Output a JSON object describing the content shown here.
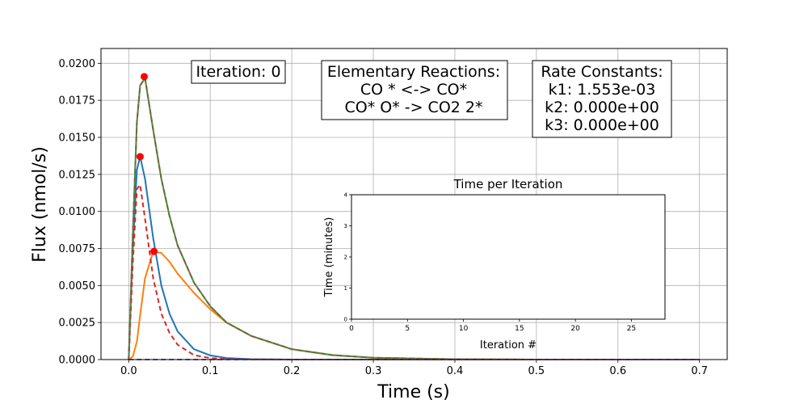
{
  "chart_data": [
    {
      "type": "line",
      "xlabel": "Time (s)",
      "ylabel": "Flux (nmol/s)",
      "xlim": [
        -0.034,
        0.734
      ],
      "ylim": [
        0.0,
        0.021
      ],
      "xticks": [
        0.0,
        0.1,
        0.2,
        0.3,
        0.4,
        0.5,
        0.6,
        0.7
      ],
      "xtick_labels": [
        "0.0",
        "0.1",
        "0.2",
        "0.3",
        "0.4",
        "0.5",
        "0.6",
        "0.7"
      ],
      "yticks": [
        0.0,
        0.0025,
        0.005,
        0.0075,
        0.01,
        0.0125,
        0.015,
        0.0175,
        0.02
      ],
      "ytick_labels": [
        "0.0000",
        "0.0025",
        "0.0050",
        "0.0075",
        "0.0100",
        "0.0125",
        "0.0150",
        "0.0175",
        "0.0200"
      ],
      "grid": true,
      "x": [
        0.0,
        0.005,
        0.01,
        0.014,
        0.02,
        0.03,
        0.04,
        0.05,
        0.06,
        0.08,
        0.1,
        0.12,
        0.15,
        0.2,
        0.25,
        0.3,
        0.4,
        0.5,
        0.6,
        0.7
      ],
      "series": [
        {
          "color": "#1f77b4",
          "dash": "solid",
          "values": [
            0.0,
            0.0075,
            0.0128,
            0.0137,
            0.0122,
            0.0082,
            0.005,
            0.0031,
            0.0019,
            0.0007,
            0.00028,
            0.0001,
            3e-05,
            3e-06,
            0.0,
            0.0,
            0.0,
            0.0,
            0.0,
            0.0
          ]
        },
        {
          "color": "#ff7f0e",
          "dash": "solid",
          "values": [
            0.0,
            0.0002,
            0.0012,
            0.003,
            0.0055,
            0.0073,
            0.0072,
            0.0066,
            0.0058,
            0.0045,
            0.0034,
            0.0025,
            0.0016,
            0.0007,
            0.0003,
            0.00012,
            2e-05,
            0.0,
            0.0,
            0.0
          ]
        },
        {
          "color": "#2ca02c",
          "dash": "solid",
          "values": [
            0.0,
            0.0085,
            0.016,
            0.0185,
            0.019,
            0.0155,
            0.0122,
            0.0097,
            0.0077,
            0.0052,
            0.0036,
            0.0025,
            0.0016,
            0.0007,
            0.0003,
            0.00012,
            2e-05,
            0.0,
            0.0,
            0.0
          ]
        },
        {
          "color": "#d62728",
          "dash": "dashed",
          "values": [
            0.0,
            0.0065,
            0.0115,
            0.0118,
            0.0095,
            0.0055,
            0.0031,
            0.0018,
            0.001,
            0.0003,
            0.0001,
            3e-05,
            1e-05,
            0.0,
            0.0,
            0.0,
            0.0,
            0.0,
            0.0,
            0.0
          ]
        },
        {
          "color": "#8c564b",
          "dash": "dashed",
          "values": [
            0.0,
            0.0085,
            0.016,
            0.0185,
            0.019,
            0.0155,
            0.0122,
            0.0097,
            0.0077,
            0.0052,
            0.0036,
            0.0025,
            0.0016,
            0.0007,
            0.0003,
            0.00012,
            2e-05,
            0.0,
            0.0,
            0.0
          ]
        },
        {
          "color": "#9467bd",
          "dash": "dashed",
          "values": [
            0.0,
            0.0,
            0.0,
            0.0,
            0.0,
            0.0,
            0.0,
            0.0,
            0.0,
            0.0,
            0.0,
            0.0,
            0.0,
            0.0,
            0.0,
            0.0,
            0.0,
            0.0,
            0.0,
            0.0
          ]
        }
      ],
      "peak_markers": [
        {
          "x": 0.014,
          "y": 0.0137,
          "color": "#ff0000"
        },
        {
          "x": 0.019,
          "y": 0.0191,
          "color": "#ff0000"
        },
        {
          "x": 0.031,
          "y": 0.0073,
          "color": "#ff0000"
        }
      ],
      "annotations": {
        "iteration": "Iteration: 0",
        "reactions": [
          "Elementary Reactions:",
          "CO  * <-> CO*",
          "CO*  O* -> CO2  2*"
        ],
        "rate_constants": [
          "Rate Constants:",
          "k1: 1.553e-03",
          "k2: 0.000e+00",
          "k3: 0.000e+00"
        ]
      }
    },
    {
      "type": "line",
      "title": "Time per Iteration",
      "xlabel": "Iteration #",
      "ylabel": "Time (minutes)",
      "xlim": [
        0,
        28
      ],
      "ylim": [
        0,
        4
      ],
      "xticks": [
        0,
        5,
        10,
        15,
        20,
        25
      ],
      "xtick_labels": [
        "0",
        "5",
        "10",
        "15",
        "20",
        "25"
      ],
      "yticks": [
        0,
        1,
        2,
        3,
        4
      ],
      "ytick_labels": [
        "0",
        "1",
        "2",
        "3",
        "4"
      ],
      "grid": false,
      "series": []
    }
  ]
}
